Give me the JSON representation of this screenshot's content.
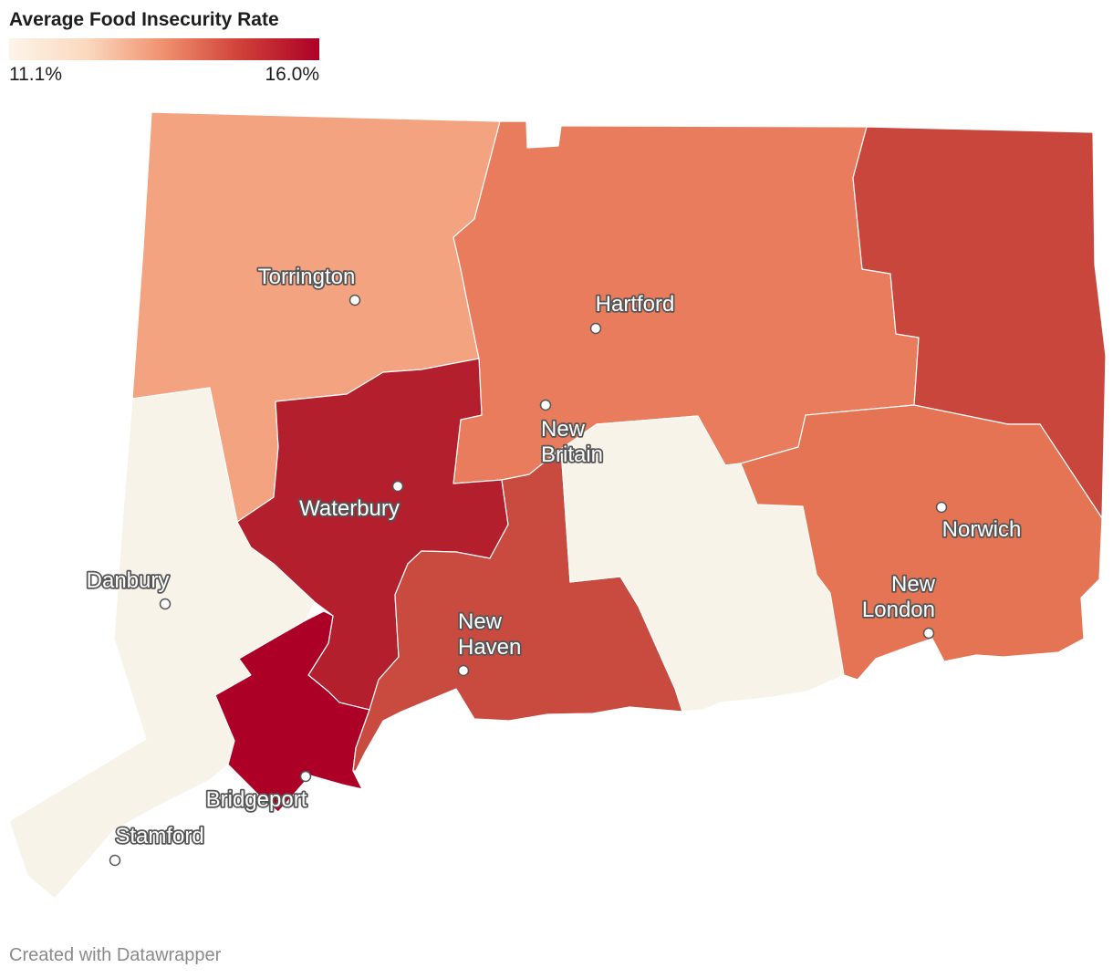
{
  "legend": {
    "title": "Average Food Insecurity Rate",
    "min_label": "11.1%",
    "max_label": "16.0%",
    "min_value": 11.1,
    "max_value": 16.0,
    "colors": [
      "#fdf4e9",
      "#fbd9bf",
      "#f0906d",
      "#cf3f38",
      "#ad0027"
    ]
  },
  "regions": [
    {
      "id": "northwest",
      "color": "#f4a381"
    },
    {
      "id": "capitol",
      "color": "#e87c5c"
    },
    {
      "id": "northeast",
      "color": "#c8463c"
    },
    {
      "id": "western",
      "color": "#f7f3e8"
    },
    {
      "id": "naugatuck-valley",
      "color": "#b41f2e"
    },
    {
      "id": "metropolitan",
      "color": "#ac0027"
    },
    {
      "id": "south-central",
      "color": "#c94a3e"
    },
    {
      "id": "lower-connecticut-river-valley",
      "color": "#f7f3e8"
    },
    {
      "id": "southeastern",
      "color": "#e47454"
    }
  ],
  "cities": [
    {
      "id": "torrington",
      "lines": [
        "Torrington"
      ]
    },
    {
      "id": "hartford",
      "lines": [
        "Hartford"
      ]
    },
    {
      "id": "new-britain",
      "lines": [
        "New",
        "Britain"
      ]
    },
    {
      "id": "waterbury",
      "lines": [
        "Waterbury"
      ]
    },
    {
      "id": "danbury",
      "lines": [
        "Danbury"
      ]
    },
    {
      "id": "norwich",
      "lines": [
        "Norwich"
      ]
    },
    {
      "id": "new-london",
      "lines": [
        "New",
        "London"
      ]
    },
    {
      "id": "new-haven",
      "lines": [
        "New",
        "Haven"
      ]
    },
    {
      "id": "bridgeport",
      "lines": [
        "Bridgeport"
      ]
    },
    {
      "id": "stamford",
      "lines": [
        "Stamford"
      ]
    }
  ],
  "footer": "Created with Datawrapper"
}
